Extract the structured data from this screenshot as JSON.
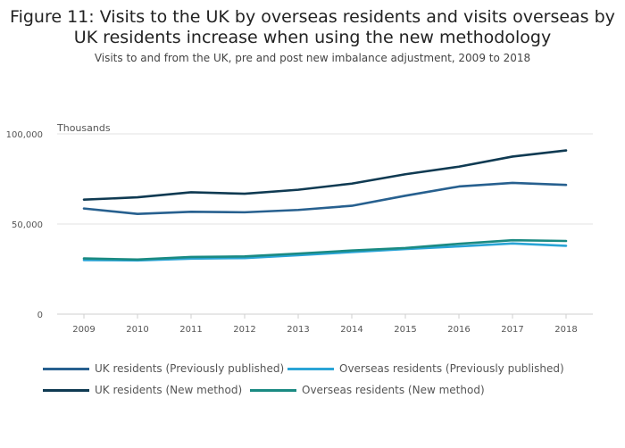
{
  "title": "Figure 11: Visits to the UK by overseas residents and visits overseas by UK residents increase when using the new methodology",
  "subtitle": "Visits to and from the UK, pre and post new imbalance adjustment, 2009 to 2018",
  "chart_data": {
    "type": "line",
    "ylabel": "Thousands",
    "xlabel": "",
    "ylim": [
      0,
      100000
    ],
    "y_ticks": [
      0,
      50000,
      100000
    ],
    "y_tick_labels": [
      "0",
      "50,000",
      "100,000"
    ],
    "x": [
      "2009",
      "2010",
      "2011",
      "2012",
      "2013",
      "2014",
      "2015",
      "2016",
      "2017",
      "2018"
    ],
    "legend_position": "bottom",
    "series": [
      {
        "name": "UK residents (Previously published)",
        "color": "#27608f",
        "values": [
          58600,
          55600,
          56800,
          56500,
          57800,
          60100,
          65700,
          70800,
          72800,
          71700
        ]
      },
      {
        "name": "Overseas residents (Previously published)",
        "color": "#2aa4d6",
        "values": [
          30000,
          29800,
          30800,
          31100,
          32700,
          34400,
          36100,
          37600,
          39200,
          37900
        ]
      },
      {
        "name": "UK residents (New method)",
        "color": "#0f3a52",
        "values": [
          63500,
          64800,
          67600,
          66800,
          69000,
          72400,
          77600,
          81800,
          87400,
          90800
        ]
      },
      {
        "name": "Overseas residents (New method)",
        "color": "#1a8a82",
        "values": [
          30900,
          30300,
          31700,
          32000,
          33600,
          35300,
          36700,
          39000,
          41000,
          40600
        ]
      }
    ]
  }
}
